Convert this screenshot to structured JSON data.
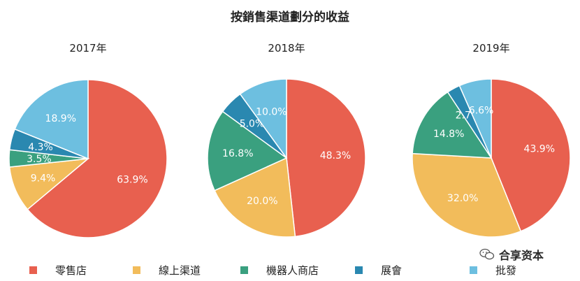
{
  "chart_data": {
    "type": "pie",
    "title": "按銷售渠道劃分的收益",
    "legend_position": "bottom",
    "categories": [
      "零售店",
      "線上渠道",
      "機器人商店",
      "展會",
      "批發"
    ],
    "colors": [
      "#E8604F",
      "#F2BC5B",
      "#3AA07F",
      "#2A88B0",
      "#6DBFE0"
    ],
    "charts": [
      {
        "label": "2017年",
        "values": [
          63.9,
          9.4,
          3.5,
          4.3,
          18.9
        ],
        "value_labels": [
          "63.9%",
          "9.4%",
          "3.5%",
          "4.3%",
          "18.9%"
        ]
      },
      {
        "label": "2018年",
        "values": [
          48.3,
          20.0,
          16.8,
          5.0,
          10.0
        ],
        "value_labels": [
          "48.3%",
          "20.0%",
          "16.8%",
          "5.0%",
          "10.0%"
        ]
      },
      {
        "label": "2019年",
        "values": [
          43.9,
          32.0,
          14.8,
          2.7,
          6.6
        ],
        "value_labels": [
          "43.9%",
          "32.0%",
          "14.8%",
          "2.7%",
          "6.6%"
        ]
      }
    ]
  },
  "watermark": {
    "text": "合享资本",
    "icon": "wechat-icon"
  }
}
